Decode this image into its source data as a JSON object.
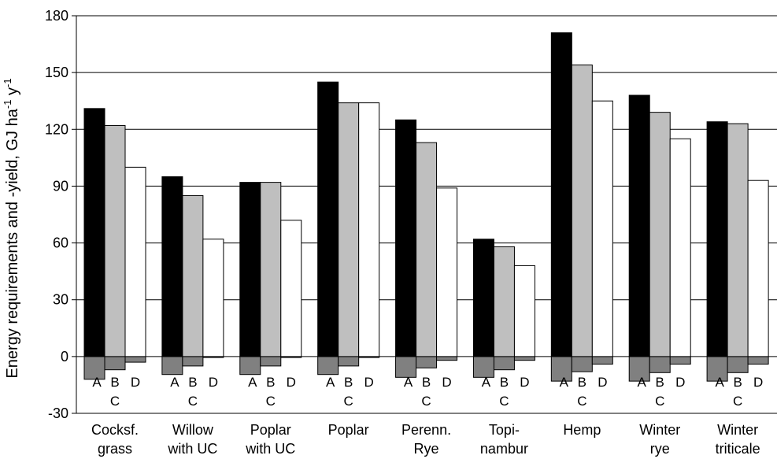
{
  "chart_data": {
    "type": "bar",
    "ylabel_main": "Energy requirements and -yield, GJ ha",
    "ylabel_sup1": "-1",
    "ylabel_mid": " y",
    "ylabel_sup2": "-1",
    "ylim": [
      -30,
      180
    ],
    "yticks": [
      "180",
      "150",
      "120",
      "90",
      "60",
      "30",
      "0",
      "-30"
    ],
    "ytick_values": [
      180,
      150,
      120,
      90,
      60,
      30,
      0,
      -30
    ],
    "categories": [
      {
        "line1": "Cocksf.",
        "line2": "grass"
      },
      {
        "line1": "Willow",
        "line2": "with UC"
      },
      {
        "line1": "Poplar",
        "line2": "with UC"
      },
      {
        "line1": "Poplar",
        "line2": ""
      },
      {
        "line1": "Perenn.",
        "line2": "Rye"
      },
      {
        "line1": "Topi-",
        "line2": "nambur"
      },
      {
        "line1": "Hemp",
        "line2": ""
      },
      {
        "line1": "Winter",
        "line2": "rye"
      },
      {
        "line1": "Winter",
        "line2": "triticale"
      }
    ],
    "bar_letters": {
      "a": "A",
      "b": "B",
      "c": "C",
      "d": "D"
    },
    "series": [
      {
        "key": "A",
        "values": [
          131,
          95,
          92,
          145,
          125,
          62,
          171,
          138,
          124
        ]
      },
      {
        "key": "B",
        "values": [
          122,
          85,
          92,
          134,
          113,
          58,
          154,
          129,
          123
        ]
      },
      {
        "key": "D",
        "values": [
          100,
          62,
          72,
          134,
          89,
          48,
          135,
          115,
          93
        ]
      },
      {
        "key": "C",
        "values": [
          -12,
          -9.5,
          -9.5,
          -9.5,
          -11,
          -11,
          -13,
          -13,
          -13
        ]
      },
      {
        "key": "C2",
        "values": [
          -7,
          -5,
          -5,
          -5,
          -6,
          -7,
          -8,
          -8.5,
          -8.5
        ]
      },
      {
        "key": "D_neg",
        "values": [
          -3,
          -0.5,
          -0.5,
          -0.5,
          -2,
          -2,
          -4,
          -4,
          -4
        ]
      }
    ],
    "colors": {
      "A": "#000000",
      "B": "#bfbfbf",
      "D": "#ffffff",
      "C": "#808080",
      "C2": "#808080",
      "D_neg": "#808080"
    },
    "grid": true,
    "legend": "none"
  }
}
